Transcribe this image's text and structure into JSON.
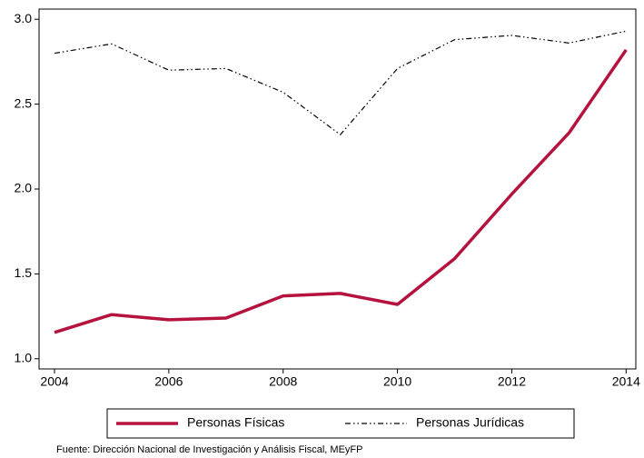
{
  "chart_data": {
    "type": "line",
    "x": [
      2004,
      2005,
      2006,
      2007,
      2008,
      2009,
      2010,
      2011,
      2012,
      2013,
      2014
    ],
    "series": [
      {
        "name": "Personas Físicas",
        "color": "#b5123e",
        "style": "solid",
        "values": [
          1.155,
          1.26,
          1.23,
          1.24,
          1.37,
          1.385,
          1.32,
          1.59,
          1.97,
          2.33,
          2.82
        ]
      },
      {
        "name": "Personas Jurídicas",
        "color": "#000000",
        "style": "dashdot",
        "values": [
          2.8,
          2.855,
          2.7,
          2.71,
          2.57,
          2.32,
          2.71,
          2.88,
          2.905,
          2.86,
          2.93
        ]
      }
    ],
    "xlim": [
      2003.73,
      2014.17
    ],
    "xticks": [
      2004,
      2006,
      2008,
      2010,
      2012,
      2014
    ],
    "ylim": [
      0.94,
      3.06
    ],
    "yticks": [
      {
        "value": 1,
        "label": "1.0"
      },
      1.5,
      {
        "value": 2,
        "label": "2.0"
      },
      2.5,
      {
        "value": 3,
        "label": "3.0"
      }
    ],
    "grid": false,
    "legend": "bottom",
    "note": "Fuente: Dirección Nacional de Investigación y Análisis Fiscal, MEyFP"
  }
}
